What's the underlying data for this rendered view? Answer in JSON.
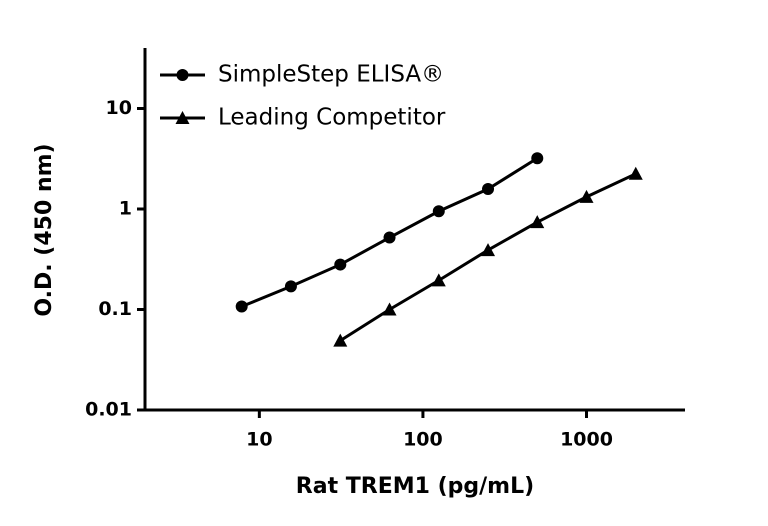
{
  "chart_data": {
    "type": "line",
    "x_label": "Rat TREM1 (pg/mL)",
    "y_label": "O.D. (450 nm)",
    "x_log": true,
    "y_log": true,
    "xlim": [
      2,
      4000
    ],
    "xticks": [
      10,
      100,
      1000
    ],
    "ylim": [
      0.01,
      40
    ],
    "yticks": [
      0.01,
      0.1,
      1,
      10
    ],
    "legend": "top-left",
    "series": [
      {
        "name": "SimpleStep ELISA®",
        "color": "#000000",
        "marker": "circle",
        "x": [
          7.8,
          15.6,
          31.25,
          62.5,
          125,
          250,
          500
        ],
        "values": [
          0.107,
          0.17,
          0.28,
          0.52,
          0.95,
          1.58,
          3.2
        ]
      },
      {
        "name": "Leading Competitor",
        "color": "#000000",
        "marker": "triangle",
        "x": [
          31.25,
          62.5,
          125,
          250,
          500,
          1000,
          2000
        ],
        "values": [
          0.049,
          0.1,
          0.195,
          0.39,
          0.74,
          1.32,
          2.24
        ]
      }
    ]
  }
}
